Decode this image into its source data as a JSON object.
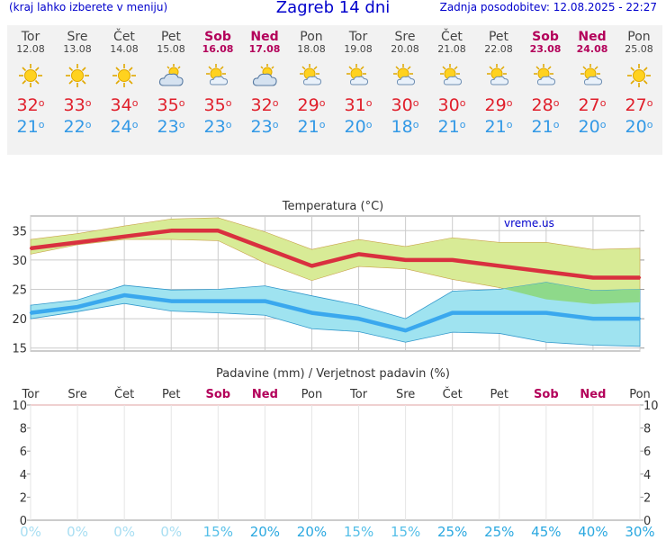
{
  "header": {
    "menu_hint": "(kraj lahko izberete v meniju)",
    "title": "Zagreb 14 dni",
    "updated": "Zadnja posodobitev: 12.08.2025 - 22:27"
  },
  "colors": {
    "max_line": "#d9303f",
    "min_line": "#3aa8ee",
    "max_band": "#d8eb96",
    "min_band": "#9fe3f0",
    "overlap": "#8ed98a",
    "weekend": "#b3005a",
    "link": "#0000cc"
  },
  "days": [
    {
      "name": "Tor",
      "date": "12.08",
      "weekend": false,
      "icon": "sun-icon",
      "max": "32",
      "min": "21"
    },
    {
      "name": "Sre",
      "date": "13.08",
      "weekend": false,
      "icon": "sun-icon",
      "max": "33",
      "min": "22"
    },
    {
      "name": "Čet",
      "date": "14.08",
      "weekend": false,
      "icon": "sun-icon",
      "max": "34",
      "min": "24"
    },
    {
      "name": "Pet",
      "date": "15.08",
      "weekend": false,
      "icon": "cloud-sun-icon",
      "max": "35",
      "min": "23"
    },
    {
      "name": "Sob",
      "date": "16.08",
      "weekend": true,
      "icon": "sun-cloud-icon",
      "max": "35",
      "min": "23"
    },
    {
      "name": "Ned",
      "date": "17.08",
      "weekend": true,
      "icon": "cloud-sun-icon",
      "max": "32",
      "min": "23"
    },
    {
      "name": "Pon",
      "date": "18.08",
      "weekend": false,
      "icon": "sun-cloud-icon",
      "max": "29",
      "min": "21"
    },
    {
      "name": "Tor",
      "date": "19.08",
      "weekend": false,
      "icon": "sun-cloud-icon",
      "max": "31",
      "min": "20"
    },
    {
      "name": "Sre",
      "date": "20.08",
      "weekend": false,
      "icon": "sun-cloud-icon",
      "max": "30",
      "min": "18"
    },
    {
      "name": "Čet",
      "date": "21.08",
      "weekend": false,
      "icon": "sun-cloud-icon",
      "max": "30",
      "min": "21"
    },
    {
      "name": "Pet",
      "date": "22.08",
      "weekend": false,
      "icon": "sun-cloud-icon",
      "max": "29",
      "min": "21"
    },
    {
      "name": "Sob",
      "date": "23.08",
      "weekend": true,
      "icon": "sun-cloud-icon",
      "max": "28",
      "min": "21"
    },
    {
      "name": "Ned",
      "date": "24.08",
      "weekend": true,
      "icon": "sun-cloud-icon",
      "max": "27",
      "min": "20"
    },
    {
      "name": "Pon",
      "date": "25.08",
      "weekend": false,
      "icon": "sun-icon",
      "max": "27",
      "min": "20"
    }
  ],
  "degree_symbol": "o",
  "chart_data": [
    {
      "type": "line",
      "title": "Temperatura (°C)",
      "watermark": "vreme.us",
      "categories": [
        "Tor",
        "Sre",
        "Čet",
        "Pet",
        "Sob",
        "Ned",
        "Pon",
        "Tor",
        "Sre",
        "Čet",
        "Pet",
        "Sob",
        "Ned",
        "Pon"
      ],
      "ylim": [
        14.5,
        37.5
      ],
      "yticks": [
        15,
        20,
        25,
        30,
        35
      ],
      "grid": true,
      "series": [
        {
          "role": "max",
          "values": [
            32,
            33,
            34,
            35,
            35,
            32,
            29,
            31,
            30,
            30,
            29,
            28,
            27,
            27
          ]
        },
        {
          "role": "max_upper",
          "values": [
            33.5,
            34.5,
            35.8,
            37,
            37.2,
            34.8,
            31.8,
            33.5,
            32.3,
            33.8,
            33,
            33,
            31.8,
            32
          ]
        },
        {
          "role": "max_lower",
          "values": [
            31,
            32.6,
            33.5,
            33.5,
            33.3,
            29.5,
            26.5,
            28.9,
            28.5,
            26.7,
            25.3,
            23.3,
            22.5,
            22.8
          ]
        },
        {
          "role": "min",
          "values": [
            21,
            22,
            24,
            23,
            23,
            23,
            21,
            20,
            18,
            21,
            21,
            21,
            20,
            20
          ]
        },
        {
          "role": "min_upper",
          "values": [
            22.3,
            23.2,
            25.7,
            24.9,
            25,
            25.6,
            23.9,
            22.3,
            20,
            24.7,
            25,
            26.2,
            24.8,
            25
          ]
        },
        {
          "role": "min_lower",
          "values": [
            20,
            21.2,
            22.6,
            21.3,
            21,
            20.6,
            18.3,
            17.8,
            16,
            17.7,
            17.5,
            16,
            15.5,
            15.3
          ]
        }
      ]
    },
    {
      "type": "bar",
      "title": "Padavine (mm) / Verjetnost padavin (%)",
      "categories": [
        "Tor",
        "Sre",
        "Čet",
        "Pet",
        "Sob",
        "Ned",
        "Pon",
        "Tor",
        "Sre",
        "Čet",
        "Pet",
        "Sob",
        "Ned",
        "Pon"
      ],
      "weekend_flags": [
        false,
        false,
        false,
        false,
        true,
        true,
        false,
        false,
        false,
        false,
        false,
        true,
        true,
        false
      ],
      "ylim": [
        0,
        10
      ],
      "yticks": [
        0,
        2,
        4,
        6,
        8,
        10
      ],
      "precipitation_mm": [
        0,
        0,
        0,
        0,
        0,
        0,
        0,
        0,
        0,
        0,
        0,
        0,
        0,
        0
      ],
      "probability_labels": [
        "0%",
        "0%",
        "0%",
        "0%",
        "15%",
        "20%",
        "20%",
        "15%",
        "15%",
        "25%",
        "25%",
        "45%",
        "40%",
        "30%"
      ],
      "probability_values": [
        0,
        0,
        0,
        0,
        15,
        20,
        20,
        15,
        15,
        25,
        25,
        45,
        40,
        30
      ]
    }
  ]
}
